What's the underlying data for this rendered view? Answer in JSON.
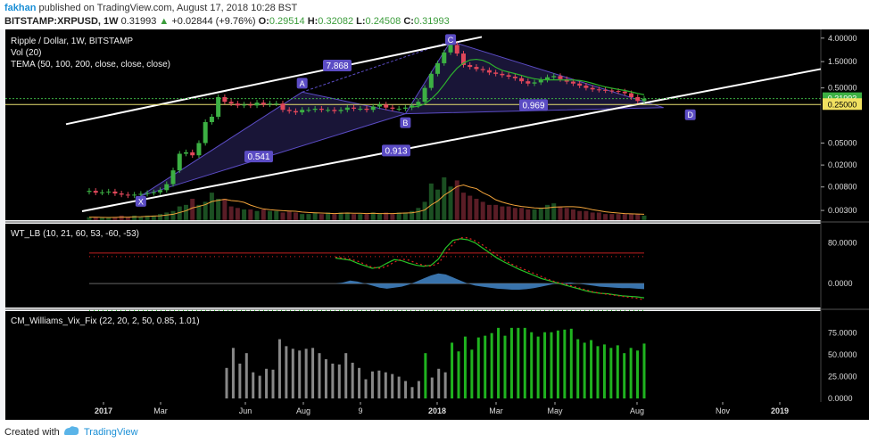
{
  "header": {
    "user": "fakhan",
    "published": "published on TradingView.com, August 17, 2018 10:28 BST",
    "symbol": "BITSTAMP:XRPUSD, 1W",
    "last": "0.31993",
    "change": "+0.02844 (+9.76%)",
    "o_label": "O:",
    "o_val": "0.29514",
    "h_label": "H:",
    "h_val": "0.32082",
    "l_label": "L:",
    "l_val": "0.24508",
    "c_label": "C:",
    "c_val": "0.31993"
  },
  "footer": {
    "created": "Created with",
    "brand": "TradingView"
  },
  "colors": {
    "bg": "#ffffff",
    "panel": "#f6f7f9",
    "up": "#3cb043",
    "down": "#e0475a",
    "pattern": "#5b4cc4",
    "trend": "#ffffff",
    "tema": "#2db12d",
    "wt_green": "#27c327",
    "wt_red": "#e02020",
    "histo": "#3f7fbf",
    "vix_grey": "#888888",
    "vix_green": "#1fb31f",
    "axis": "#1e1e1e",
    "vol_line": "#f2a33a"
  },
  "chart_data": [
    {
      "type": "candlestick",
      "title": "Ripple / Dollar, 1W, BITSTAMP",
      "indicators": [
        "Vol (20)",
        "TEMA (50, 100, 200, close, close, close)"
      ],
      "y_scale": "log",
      "y_ticks": [
        "4.00000",
        "1.50000",
        "0.50000",
        "0.05000",
        "0.02000",
        "0.00800",
        "0.00300"
      ],
      "x_ticks": [
        "2017",
        "Mar",
        "Jun",
        "Aug",
        "9",
        "2018",
        "Mar",
        "May",
        "Aug",
        "Nov",
        "2019"
      ],
      "price_badges": [
        {
          "label": "0.31993",
          "color": "#3cb043"
        },
        {
          "label": "0.25000",
          "color": "#f0e060"
        }
      ],
      "pattern_points": [
        {
          "label": "X",
          "value": 0.0055
        },
        {
          "label": "A",
          "value": 0.42
        },
        {
          "label": "B",
          "value": 0.17
        },
        {
          "label": "C",
          "value": 3.5
        },
        {
          "label": "D",
          "value": 0.22
        }
      ],
      "pattern_ratios": [
        "0.541",
        "7.868",
        "0.913",
        "0.969"
      ],
      "candles": {
        "opens": [
          0.0065,
          0.0068,
          0.0063,
          0.0064,
          0.0066,
          0.0061,
          0.0058,
          0.0056,
          0.0058,
          0.006,
          0.0062,
          0.0064,
          0.007,
          0.009,
          0.016,
          0.032,
          0.034,
          0.03,
          0.05,
          0.12,
          0.15,
          0.34,
          0.28,
          0.26,
          0.24,
          0.25,
          0.24,
          0.27,
          0.25,
          0.26,
          0.26,
          0.2,
          0.19,
          0.18,
          0.2,
          0.2,
          0.21,
          0.2,
          0.2,
          0.19,
          0.2,
          0.22,
          0.21,
          0.21,
          0.2,
          0.23,
          0.25,
          0.22,
          0.21,
          0.21,
          0.22,
          0.24,
          0.28,
          0.5,
          0.9,
          1.4,
          2.2,
          3.0,
          2.1,
          1.3,
          1.2,
          1.1,
          1.05,
          0.95,
          0.9,
          0.85,
          0.8,
          0.75,
          0.66,
          0.6,
          0.63,
          0.7,
          0.78,
          0.82,
          0.72,
          0.65,
          0.6,
          0.55,
          0.5,
          0.47,
          0.46,
          0.45,
          0.44,
          0.43,
          0.4,
          0.34,
          0.29
        ],
        "closes": [
          0.0068,
          0.0063,
          0.0064,
          0.0066,
          0.0061,
          0.0058,
          0.0056,
          0.0058,
          0.006,
          0.0062,
          0.0064,
          0.007,
          0.009,
          0.016,
          0.032,
          0.034,
          0.03,
          0.05,
          0.12,
          0.15,
          0.34,
          0.28,
          0.26,
          0.24,
          0.25,
          0.24,
          0.27,
          0.25,
          0.26,
          0.26,
          0.2,
          0.19,
          0.18,
          0.2,
          0.2,
          0.21,
          0.2,
          0.2,
          0.19,
          0.2,
          0.22,
          0.21,
          0.21,
          0.2,
          0.23,
          0.25,
          0.22,
          0.21,
          0.21,
          0.22,
          0.24,
          0.28,
          0.5,
          0.9,
          1.4,
          2.2,
          3.0,
          2.1,
          1.3,
          1.2,
          1.1,
          1.05,
          0.95,
          0.9,
          0.85,
          0.8,
          0.75,
          0.66,
          0.6,
          0.63,
          0.7,
          0.78,
          0.82,
          0.72,
          0.65,
          0.6,
          0.55,
          0.5,
          0.47,
          0.46,
          0.45,
          0.44,
          0.43,
          0.4,
          0.34,
          0.29,
          0.32
        ]
      },
      "volume": [
        2,
        2,
        1.5,
        1.5,
        2,
        3,
        2,
        3,
        2,
        3,
        3,
        4,
        5,
        6,
        9,
        10,
        14,
        10,
        12,
        18,
        14,
        14,
        9,
        8,
        7,
        7,
        6,
        7,
        6,
        6,
        5,
        6,
        5,
        4,
        4,
        5,
        4,
        5,
        4,
        5,
        5,
        4,
        4,
        4,
        5,
        4,
        5,
        4,
        5,
        5,
        6,
        8,
        12,
        24,
        20,
        28,
        22,
        26,
        18,
        16,
        14,
        12,
        10,
        10,
        9,
        9,
        8,
        8,
        7,
        7,
        8,
        10,
        11,
        9,
        8,
        7,
        6,
        6,
        5,
        5,
        4,
        4,
        4,
        4,
        4,
        4,
        3
      ]
    },
    {
      "type": "line",
      "title": "WT_LB (10, 21, 60, 53, -60, -53)",
      "y_ticks": [
        "80.0000",
        "0.0000"
      ],
      "series": [
        {
          "values": [
            50,
            48,
            46,
            40,
            35,
            30,
            32,
            40,
            47,
            45,
            40,
            36,
            34,
            36,
            48,
            70,
            85,
            88,
            86,
            80,
            70,
            60,
            50,
            42,
            35,
            28,
            22,
            16,
            10,
            6,
            2,
            -2,
            -6,
            -10,
            -14,
            -17,
            -19,
            -20,
            -22,
            -24,
            -25,
            -26,
            -28
          ]
        },
        {
          "values": [
            52,
            50,
            48,
            44,
            38,
            32,
            30,
            34,
            42,
            48,
            46,
            40,
            36,
            34,
            40,
            58,
            78,
            90,
            90,
            84,
            76,
            66,
            56,
            46,
            38,
            32,
            26,
            20,
            14,
            8,
            3,
            0,
            -4,
            -8,
            -12,
            -16,
            -19,
            -21,
            -23,
            -25,
            -27,
            -29,
            -32
          ]
        }
      ],
      "histogram": [
        0,
        2,
        6,
        4,
        0,
        -4,
        -8,
        -10,
        -8,
        -6,
        -2,
        4,
        10,
        16,
        20,
        18,
        12,
        6,
        0,
        -4,
        -6,
        -8,
        -10,
        -11,
        -12,
        -12,
        -11,
        -9,
        -6,
        -3,
        0,
        1,
        2,
        0,
        -2,
        -4,
        -6,
        -7,
        -8,
        -9,
        -9,
        -10,
        -11
      ]
    },
    {
      "type": "bar",
      "title": "CM_Williams_Vix_Fix (22, 20, 2, 50, 0.85, 1.01)",
      "y_ticks": [
        "75.0000",
        "50.0000",
        "25.0000",
        "0.0000"
      ],
      "values": [
        35,
        58,
        40,
        52,
        30,
        26,
        34,
        33,
        68,
        60,
        57,
        55,
        57,
        58,
        52,
        45,
        40,
        39,
        52,
        41,
        35,
        22,
        31,
        32,
        30,
        28,
        25,
        20,
        13,
        20,
        52,
        24,
        34,
        30,
        64,
        54,
        71,
        56,
        70,
        72,
        75,
        81,
        72,
        81,
        81,
        81,
        76,
        71,
        76,
        76,
        78,
        79,
        80,
        68,
        64,
        67,
        60,
        62,
        58,
        61,
        52,
        58,
        55,
        63
      ],
      "green_from": 30
    }
  ]
}
